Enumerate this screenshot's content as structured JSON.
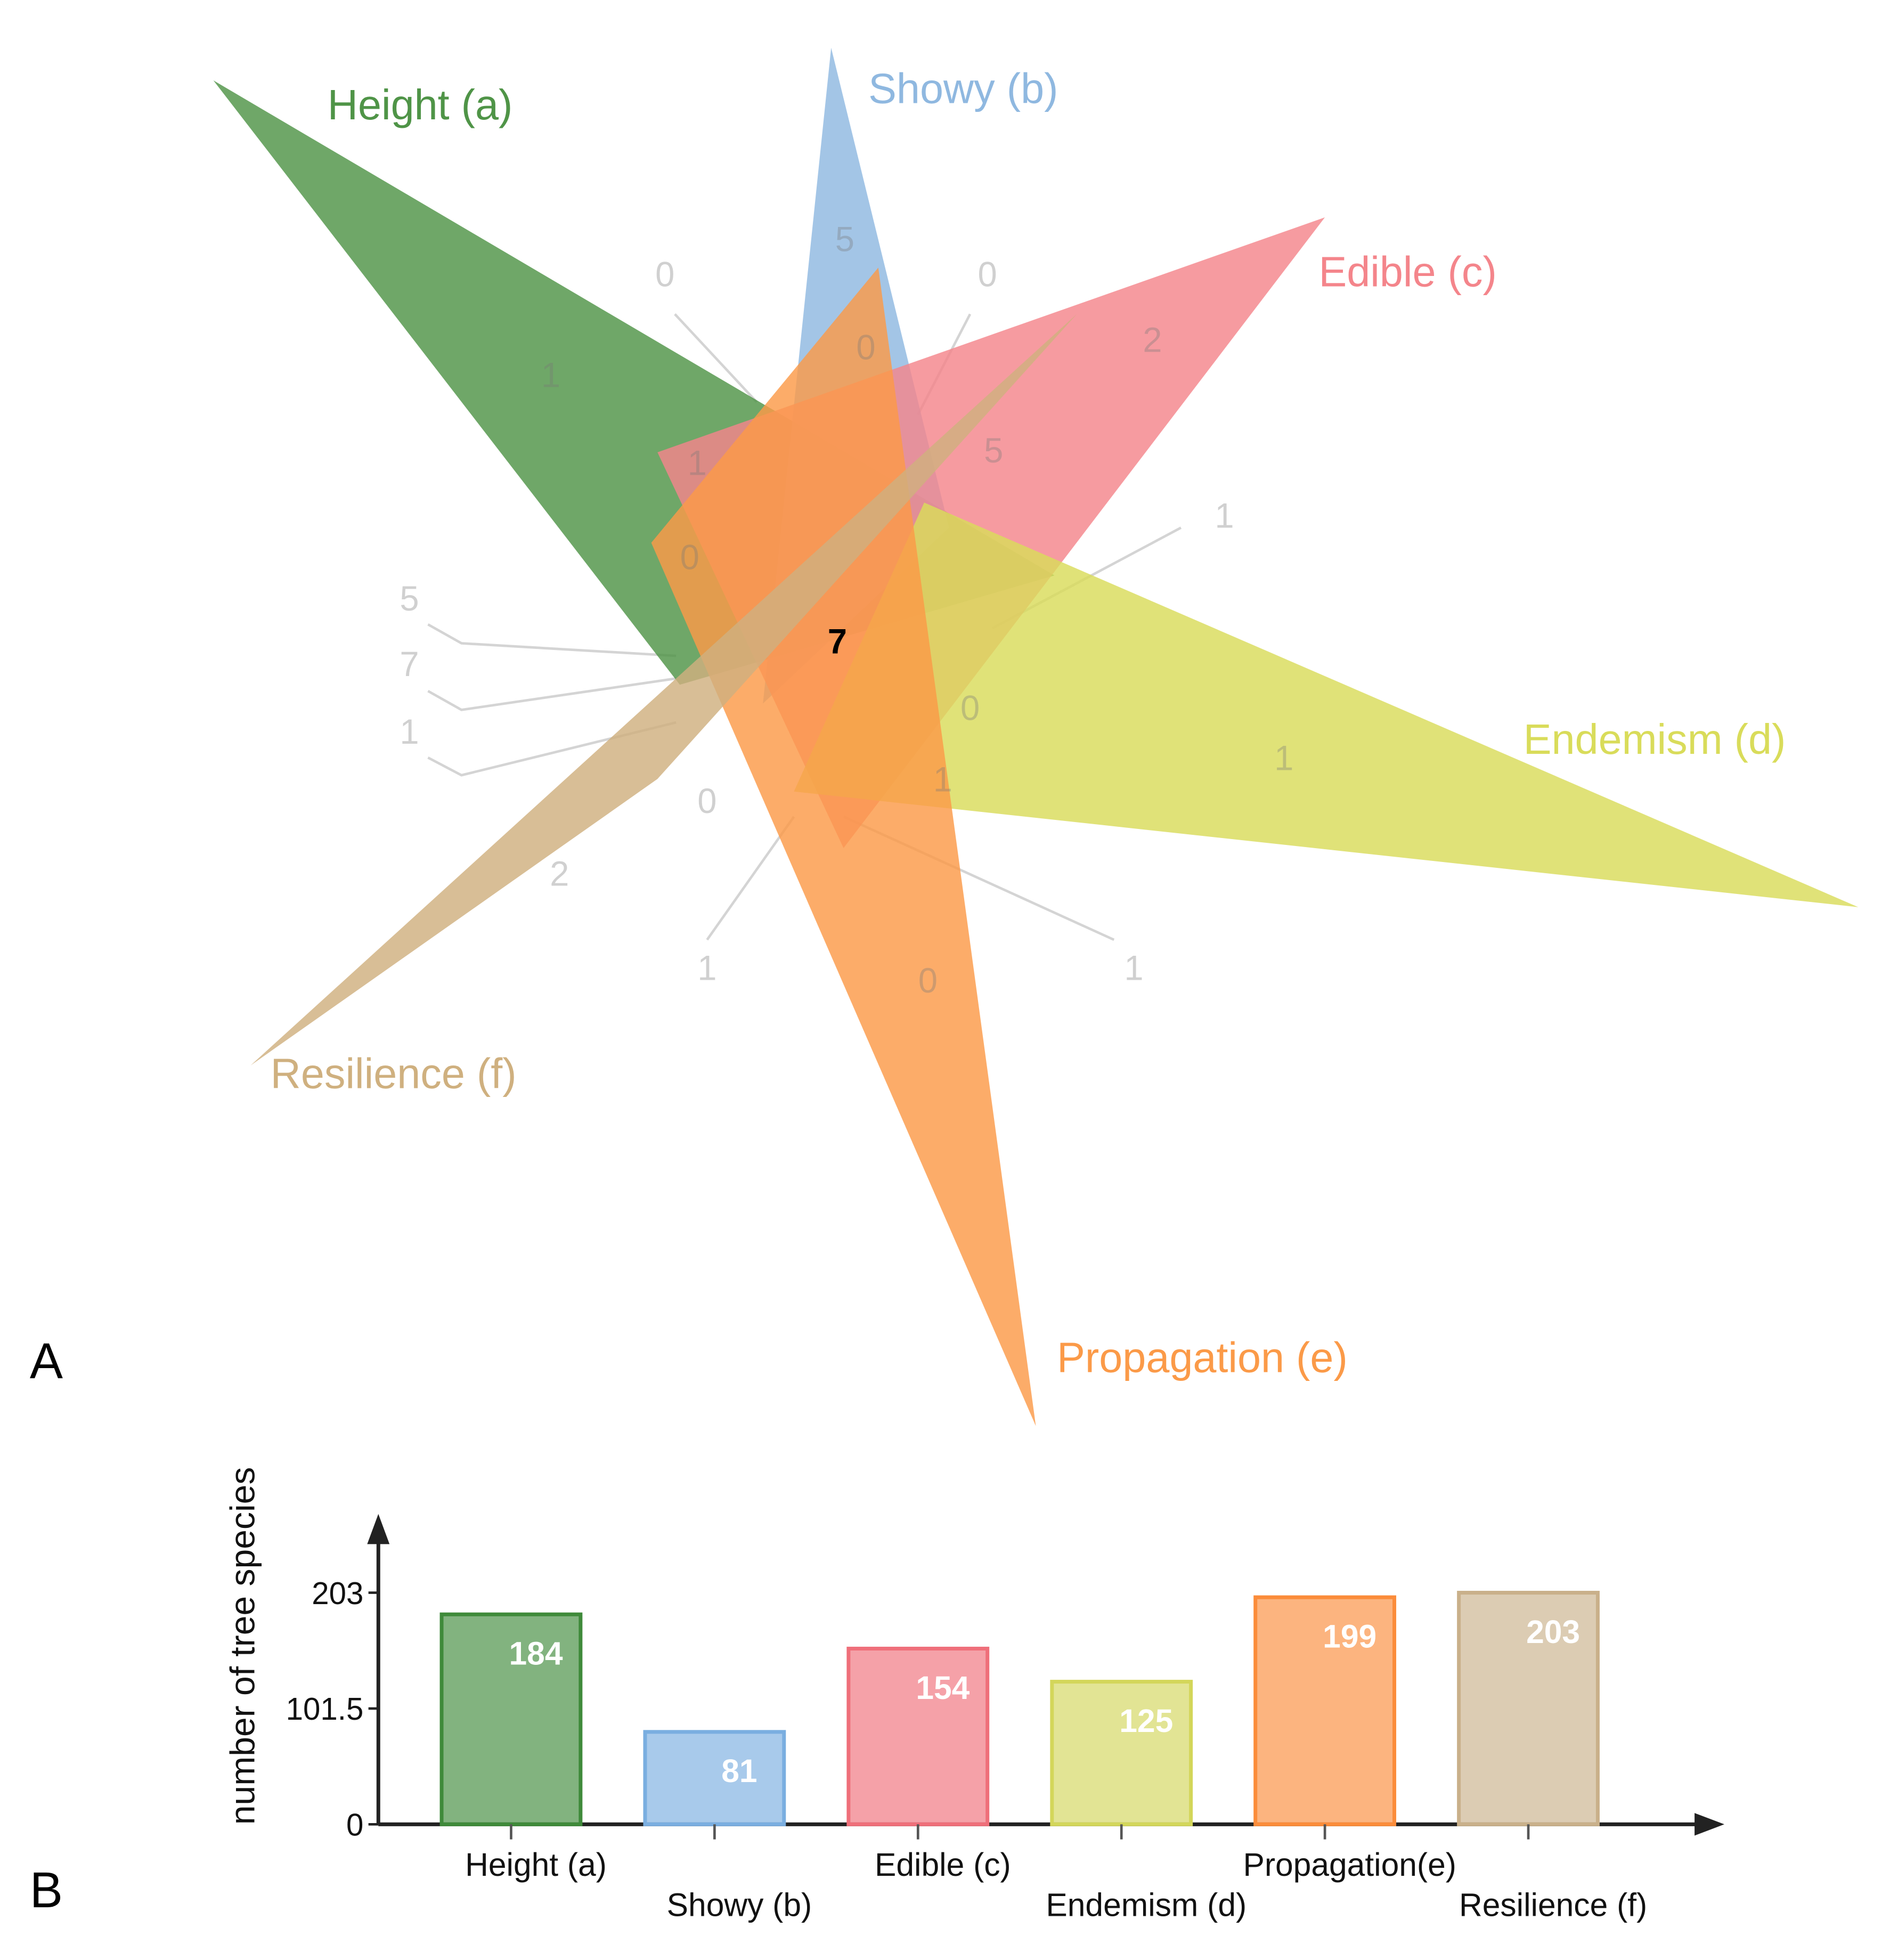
{
  "panels": [
    "A",
    "B"
  ],
  "chart_data": [
    {
      "type": "venn",
      "sets": [
        {
          "name": "Height (a)",
          "color": "#4f9447"
        },
        {
          "name": "Showy (b)",
          "color": "#8fb8e0"
        },
        {
          "name": "Edible (c)",
          "color": "#f4858b"
        },
        {
          "name": "Endemism (d)",
          "color": "#d9dc5a"
        },
        {
          "name": "Propagation (e)",
          "color": "#fb9a48"
        },
        {
          "name": "Resilience (f)",
          "color": "#cfb07f"
        }
      ],
      "regions": [
        0,
        5,
        0,
        1,
        0,
        2,
        1,
        5,
        1,
        0,
        7,
        5,
        7,
        1,
        0,
        1,
        1,
        0,
        2,
        1,
        0,
        1
      ]
    },
    {
      "type": "bar",
      "y_label": "number of tree species",
      "categories": [
        "Height (a)",
        "Showy (b)",
        "Edible (c)",
        "Endemism (d)",
        "Propagation(e)",
        "Resilience (f)"
      ],
      "values": [
        184,
        81,
        154,
        125,
        199,
        203
      ],
      "colors": [
        "#3f8a3a",
        "#7aaee0",
        "#ef6f7a",
        "#d3d65a",
        "#fb8c3a",
        "#c9b08a"
      ],
      "ylim": [
        0,
        272
      ],
      "yticks": [
        0,
        101.5,
        203
      ]
    }
  ]
}
